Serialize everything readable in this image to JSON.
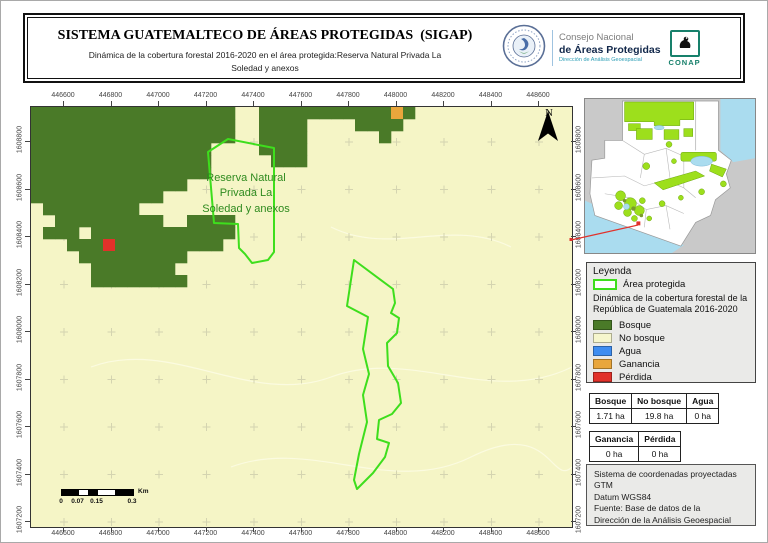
{
  "header": {
    "title": "SISTEMA GUATEMALTECO DE ÁREAS PROTEGIDAS  (SIGAP)",
    "subtitle_line1": "Dinámica de la cobertura forestal 2016-2020 en el área protegida:Reserva Natural Privada La",
    "subtitle_line2": "Soledad y anexos",
    "org": {
      "line1": "Consejo Nacional",
      "line2": "de Áreas Protegidas",
      "line3": "Dirección de Análisis Geoespacial",
      "seal_label": "GOBIERNO DE LA REPÚBLICA GUATEMALA",
      "conap": "CONAP"
    }
  },
  "map": {
    "area_label_lines": [
      "Reserva Natural",
      "Privada La",
      "Soledad y anexos"
    ],
    "north_label": "N",
    "x_ticks": [
      "446600",
      "446800",
      "447000",
      "447200",
      "447400",
      "447600",
      "447800",
      "448000",
      "448200",
      "448400",
      "448600"
    ],
    "y_ticks": [
      "1608800",
      "1608600",
      "1608400",
      "1608200",
      "1608000",
      "1607800",
      "1607600",
      "1607400",
      "1607200"
    ],
    "scalebar": {
      "labels": [
        "0",
        "0.07",
        "0.15",
        "0.3"
      ],
      "unit": "Km"
    },
    "colors": {
      "bosque": "#4a7a28",
      "no_bosque": "#f5f5c6",
      "agua": "#3f8df0",
      "ganancia": "#e9a63c",
      "perdida": "#e1312a",
      "area_outline": "#3ede1d",
      "grid_cross": "#d4d4b0"
    },
    "raster_rows": [
      "BBBBBBBBBBBBBBBBB..BBBBBBBBBBBGB.............",
      "BBBBBBBBBBBBBBBBB..BBBB....BBBB..............",
      "BBBBBBBBBBBBBBBBB..BBBB......B...............",
      "BBBBBBBBBBBBBBB....BBBB......................",
      "BBBBBBBBBBBBBBB.....BBB......................",
      "BBBBBBBBBBBBBBB..............................",
      "BBBBBBBBBBBBB................................",
      "BBBBBBBBBBB..................................",
      ".BBBBBBBB....................................",
      "..BBBBBBBBB..BBBB............................",
      ".BBB.BBBBBBBBBBBB............................",
      "...BBBRBBBBBBBBB.............................",
      "....BBBBBBBBB................................",
      ".....BBBBBBB.................................",
      ".....BBBBBBBB................................"
    ],
    "protected_area_polygons": [
      [
        [
          177,
          45
        ],
        [
          197,
          32
        ],
        [
          243,
          41
        ],
        [
          243,
          145
        ],
        [
          237,
          153
        ],
        [
          221,
          156
        ],
        [
          214,
          147
        ],
        [
          208,
          141
        ],
        [
          207,
          117
        ],
        [
          183,
          116
        ]
      ],
      [
        [
          323,
          153
        ],
        [
          362,
          182
        ],
        [
          364,
          196
        ],
        [
          360,
          206
        ],
        [
          368,
          211
        ],
        [
          366,
          226
        ],
        [
          356,
          236
        ],
        [
          357,
          259
        ],
        [
          367,
          276
        ],
        [
          370,
          296
        ],
        [
          361,
          307
        ],
        [
          348,
          313
        ],
        [
          346,
          332
        ],
        [
          358,
          336
        ],
        [
          354,
          350
        ],
        [
          342,
          366
        ],
        [
          326,
          382
        ],
        [
          323,
          373
        ],
        [
          328,
          347
        ],
        [
          336,
          315
        ],
        [
          332,
          288
        ],
        [
          338,
          267
        ],
        [
          332,
          242
        ],
        [
          337,
          210
        ],
        [
          316,
          199
        ]
      ]
    ]
  },
  "legend": {
    "title": "Leyenda",
    "area_item": "Área protegida",
    "subtitle_line1": "Dinámica de la cobertura forestal de la",
    "subtitle_line2": "República de Guatemala 2016-2020",
    "items": [
      {
        "label": "Bosque",
        "color": "#4a7a28"
      },
      {
        "label": "No bosque",
        "color": "#f6f6cd"
      },
      {
        "label": "Agua",
        "color": "#3f8df0"
      },
      {
        "label": "Ganancia",
        "color": "#e9a63c"
      },
      {
        "label": "Pérdida",
        "color": "#e1312a"
      }
    ]
  },
  "tables": [
    {
      "headers": [
        "Bosque",
        "No bosque",
        "Agua"
      ],
      "values": [
        "1.71 ha",
        "19.8 ha",
        "0 ha"
      ]
    },
    {
      "headers": [
        "Ganancia",
        "Pérdida"
      ],
      "values": [
        "0 ha",
        "0 ha"
      ]
    }
  ],
  "info_box": {
    "lines": [
      "Sistema de coordenadas proyectadas",
      "GTM",
      "Datum WGS84",
      "Fuente: Base de datos de la",
      "Dirección de la Análisis Geoespacial"
    ]
  }
}
